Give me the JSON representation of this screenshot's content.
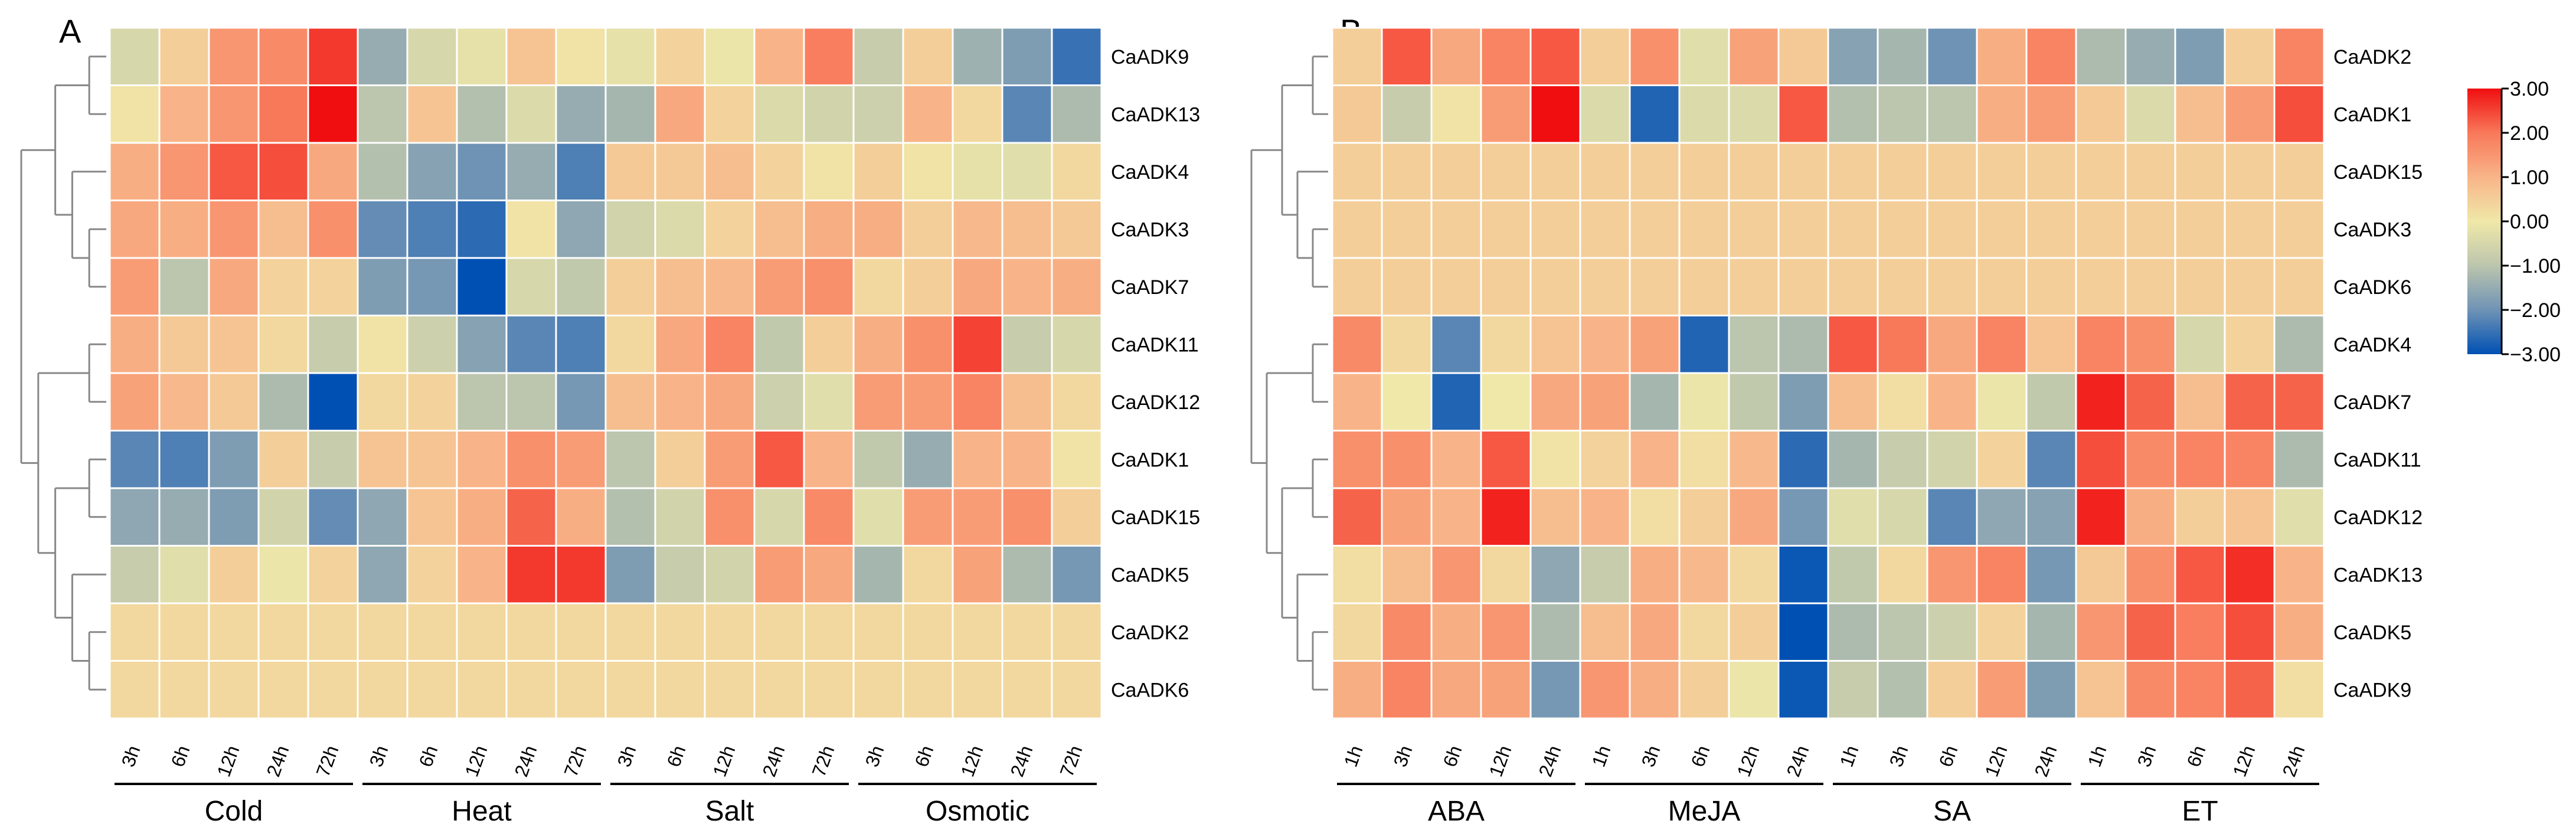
{
  "chart_data": [
    {
      "type": "heatmap",
      "panel_label": "A",
      "rows": [
        "CaADK9",
        "CaADK13",
        "CaADK4",
        "CaADK3",
        "CaADK7",
        "CaADK11",
        "CaADK12",
        "CaADK1",
        "CaADK15",
        "CaADK5",
        "CaADK2",
        "CaADK6"
      ],
      "groups": [
        {
          "name": "Cold",
          "times": [
            "3h",
            "6h",
            "12h",
            "24h",
            "72h"
          ]
        },
        {
          "name": "Heat",
          "times": [
            "3h",
            "6h",
            "12h",
            "24h",
            "72h"
          ]
        },
        {
          "name": "Salt",
          "times": [
            "3h",
            "6h",
            "12h",
            "24h",
            "72h"
          ]
        },
        {
          "name": "Osmotic",
          "times": [
            "3h",
            "6h",
            "12h",
            "24h",
            "72h"
          ]
        }
      ],
      "values": [
        [
          -0.5,
          0.5,
          1.5,
          1.7,
          2.6,
          -1.5,
          -0.5,
          -0.2,
          0.7,
          0.1,
          -0.2,
          0.4,
          -0.1,
          1.0,
          1.9,
          -0.8,
          0.5,
          -1.4,
          -1.8,
          -2.5
        ],
        [
          0.1,
          1.0,
          1.5,
          2.0,
          3.0,
          -1.0,
          0.7,
          -1.1,
          -0.4,
          -1.5,
          -1.3,
          1.2,
          0.4,
          -0.4,
          -0.6,
          -0.7,
          1.0,
          0.3,
          -2.2,
          -1.2
        ],
        [
          1.1,
          1.5,
          2.3,
          2.4,
          1.2,
          -1.1,
          -1.7,
          -2.0,
          -1.5,
          -2.3,
          0.6,
          0.6,
          0.8,
          0.4,
          0.1,
          0.5,
          0.1,
          -0.2,
          -0.3,
          0.3
        ],
        [
          1.2,
          1.1,
          1.5,
          0.8,
          1.6,
          -2.1,
          -2.3,
          -2.6,
          0.1,
          -1.6,
          -0.6,
          -0.4,
          0.4,
          0.8,
          1.1,
          1.1,
          0.5,
          0.9,
          0.8,
          0.6
        ],
        [
          1.4,
          -1.0,
          1.2,
          0.4,
          0.4,
          -1.8,
          -1.9,
          -3.0,
          -0.5,
          -0.9,
          0.5,
          0.8,
          0.9,
          1.4,
          1.6,
          0.3,
          0.5,
          1.2,
          1.0,
          1.1
        ],
        [
          1.1,
          0.6,
          0.7,
          0.3,
          -0.8,
          0.1,
          -0.7,
          -1.7,
          -2.2,
          -2.3,
          0.3,
          1.2,
          1.8,
          -0.9,
          0.5,
          1.1,
          1.6,
          2.5,
          -0.8,
          -0.5
        ],
        [
          1.3,
          0.9,
          0.6,
          -1.2,
          -3.0,
          0.3,
          0.4,
          -1.0,
          -1.0,
          -1.9,
          0.8,
          1.0,
          1.2,
          -0.7,
          -0.3,
          1.4,
          1.4,
          1.8,
          0.8,
          0.3
        ],
        [
          -2.2,
          -2.3,
          -1.8,
          0.5,
          -0.8,
          0.7,
          0.7,
          1.0,
          1.6,
          1.4,
          -1.0,
          0.5,
          1.4,
          2.3,
          1.0,
          -0.9,
          -1.5,
          1.0,
          1.0,
          0.1
        ],
        [
          -1.6,
          -1.5,
          -1.8,
          -0.6,
          -2.1,
          -1.6,
          0.7,
          1.1,
          2.2,
          1.1,
          -1.1,
          -0.6,
          1.6,
          -0.5,
          1.7,
          -0.3,
          1.4,
          1.4,
          1.6,
          0.5
        ],
        [
          -0.8,
          -0.3,
          0.5,
          -0.1,
          0.4,
          -1.6,
          0.4,
          1.0,
          2.6,
          2.6,
          -1.8,
          -0.8,
          -0.6,
          1.4,
          1.2,
          -1.3,
          0.3,
          1.3,
          -1.2,
          -1.9
        ],
        [
          0.3,
          0.3,
          0.3,
          0.3,
          0.3,
          0.3,
          0.3,
          0.3,
          0.3,
          0.3,
          0.3,
          0.3,
          0.3,
          0.3,
          0.3,
          0.3,
          0.3,
          0.3,
          0.3,
          0.3
        ],
        [
          0.3,
          0.3,
          0.3,
          0.3,
          0.3,
          0.3,
          0.3,
          0.3,
          0.3,
          0.3,
          0.3,
          0.3,
          0.3,
          0.3,
          0.3,
          0.3,
          0.3,
          0.3,
          0.3,
          0.3
        ]
      ],
      "dendrogram": "(((CaADK9,CaADK13),(CaADK4,(CaADK3,CaADK7))),((CaADK11,CaADK12),((CaADK1,CaADK15),(CaADK5,(CaADK2,CaADK6)))))"
    },
    {
      "type": "heatmap",
      "panel_label": "B",
      "rows": [
        "CaADK2",
        "CaADK1",
        "CaADK15",
        "CaADK3",
        "CaADK6",
        "CaADK4",
        "CaADK7",
        "CaADK11",
        "CaADK12",
        "CaADK13",
        "CaADK5",
        "CaADK9"
      ],
      "groups": [
        {
          "name": "ABA",
          "times": [
            "1h",
            "3h",
            "6h",
            "12h",
            "24h"
          ]
        },
        {
          "name": "MeJA",
          "times": [
            "1h",
            "3h",
            "6h",
            "12h",
            "24h"
          ]
        },
        {
          "name": "SA",
          "times": [
            "1h",
            "3h",
            "6h",
            "12h",
            "24h"
          ]
        },
        {
          "name": "ET",
          "times": [
            "1h",
            "3h",
            "6h",
            "12h",
            "24h"
          ]
        }
      ],
      "values": [
        [
          0.5,
          2.3,
          1.2,
          1.8,
          2.3,
          0.5,
          1.6,
          -0.3,
          1.3,
          0.6,
          -1.7,
          -1.3,
          -2.0,
          1.1,
          1.8,
          -1.2,
          -1.5,
          -1.8,
          0.5,
          1.8
        ],
        [
          0.6,
          -0.8,
          0.1,
          1.4,
          3.0,
          -0.4,
          -2.7,
          -0.4,
          -0.4,
          2.3,
          -1.1,
          -1.0,
          -1.0,
          1.1,
          1.4,
          0.6,
          -0.4,
          0.8,
          1.4,
          2.4
        ],
        [
          0.5,
          0.5,
          0.5,
          0.5,
          0.5,
          0.5,
          0.5,
          0.5,
          0.5,
          0.5,
          0.5,
          0.5,
          0.5,
          0.5,
          0.5,
          0.5,
          0.5,
          0.5,
          0.5,
          0.5
        ],
        [
          0.5,
          0.5,
          0.5,
          0.5,
          0.5,
          0.5,
          0.5,
          0.5,
          0.5,
          0.5,
          0.5,
          0.5,
          0.5,
          0.5,
          0.5,
          0.5,
          0.5,
          0.5,
          0.5,
          0.5
        ],
        [
          0.5,
          0.5,
          0.5,
          0.5,
          0.5,
          0.5,
          0.5,
          0.5,
          0.5,
          0.5,
          0.5,
          0.5,
          0.5,
          0.5,
          0.5,
          0.5,
          0.5,
          0.5,
          0.5,
          0.5
        ],
        [
          1.7,
          0.3,
          -2.2,
          0.3,
          0.7,
          1.0,
          1.3,
          -2.7,
          -1.0,
          -1.2,
          2.3,
          2.0,
          1.2,
          1.8,
          0.7,
          1.8,
          1.6,
          -0.5,
          0.4,
          -1.2
        ],
        [
          1.0,
          0.0,
          -2.7,
          0.0,
          1.2,
          1.3,
          -1.3,
          -0.1,
          -0.9,
          -1.8,
          0.8,
          0.2,
          1.0,
          -0.1,
          -0.9,
          2.8,
          2.2,
          0.8,
          2.2,
          2.2
        ],
        [
          1.6,
          1.6,
          1.0,
          2.3,
          0.1,
          0.4,
          1.0,
          0.2,
          0.9,
          -2.6,
          -1.3,
          -0.8,
          -0.6,
          0.4,
          -2.2,
          2.4,
          1.7,
          1.8,
          1.8,
          -1.2
        ],
        [
          2.2,
          1.3,
          1.0,
          2.8,
          0.8,
          1.0,
          0.2,
          0.5,
          1.2,
          -1.9,
          -0.3,
          -0.5,
          -2.2,
          -1.6,
          -1.7,
          2.8,
          1.1,
          0.5,
          0.7,
          -0.3
        ],
        [
          0.2,
          0.8,
          1.5,
          0.3,
          -1.6,
          -0.8,
          1.1,
          0.9,
          0.3,
          -2.9,
          -0.9,
          0.3,
          1.5,
          1.8,
          -1.9,
          0.6,
          1.6,
          2.3,
          2.7,
          1.0
        ],
        [
          0.3,
          1.7,
          1.1,
          1.5,
          -1.2,
          0.8,
          1.2,
          0.3,
          0.5,
          -3.0,
          -1.2,
          -1.0,
          -0.7,
          0.4,
          -1.3,
          1.5,
          2.2,
          1.9,
          2.4,
          1.1
        ],
        [
          1.1,
          1.8,
          1.2,
          1.3,
          -1.9,
          1.5,
          1.1,
          0.5,
          -0.1,
          -2.9,
          -0.8,
          -1.1,
          0.5,
          1.4,
          -1.8,
          0.7,
          1.7,
          1.8,
          2.2,
          0.2
        ]
      ],
      "dendrogram": "(((CaADK2,CaADK1),(CaADK15,(CaADK3,CaADK6))),((CaADK4,CaADK7),((CaADK11,CaADK12),(CaADK13,(CaADK5,CaADK9)))))"
    }
  ],
  "legend": {
    "ticks": [
      "3.00",
      "2.00",
      "1.00",
      "0.00",
      "−1.00",
      "−2.00",
      "−3.00"
    ],
    "range": [
      -3,
      3
    ],
    "colors": {
      "-3": "#0050b4",
      "-2": "#6f93b5",
      "-1": "#bcc5ad",
      "0": "#f0e8a8",
      "1": "#f8b488",
      "2": "#f8785a",
      "3": "#f00e10"
    }
  }
}
